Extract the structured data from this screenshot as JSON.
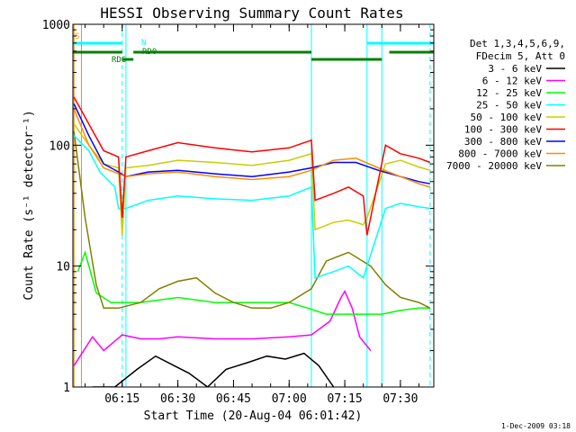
{
  "chart_data": {
    "type": "line",
    "title": "HESSI Observing Summary Count Rates",
    "xlabel": "Start Time (20-Aug-04 06:01:42)",
    "ylabel": "Count Rate (s⁻¹ detector⁻¹)",
    "y_scale": "log",
    "ylim": [
      1,
      1000
    ],
    "xlim": [
      "06:01:42",
      "07:39:00"
    ],
    "x_ticks": [
      "06:15",
      "06:30",
      "06:45",
      "07:00",
      "07:15",
      "07:30"
    ],
    "y_ticks": [
      "1",
      "10",
      "100",
      "1000"
    ],
    "legend_position": "right",
    "legend_header": [
      "Det 1,3,4,5,6,9,",
      "FDecim 5, Att 0"
    ],
    "series": [
      {
        "name": "3 - 6 keV",
        "color": "#000000",
        "x": [
          "06:07",
          "06:13",
          "06:19",
          "06:24",
          "06:29",
          "06:33",
          "06:38",
          "06:43",
          "06:49",
          "06:54",
          "06:59",
          "07:04",
          "07:08",
          "07:12"
        ],
        "y": [
          1,
          1,
          1.4,
          1.8,
          1.5,
          1.3,
          1,
          1.4,
          1.6,
          1.8,
          1.7,
          1.9,
          1.5,
          1
        ]
      },
      {
        "name": "6 - 12 keV",
        "color": "#ff00ff",
        "x": [
          "06:02",
          "06:07",
          "06:10",
          "06:15",
          "06:20",
          "06:25",
          "06:30",
          "06:40",
          "06:50",
          "07:00",
          "07:06",
          "07:11",
          "07:14",
          "07:15",
          "07:17",
          "07:19",
          "07:22"
        ],
        "y": [
          1.5,
          2.6,
          2,
          2.7,
          2.5,
          2.5,
          2.6,
          2.5,
          2.5,
          2.6,
          2.7,
          3.5,
          5.5,
          6.2,
          4.5,
          2.6,
          2
        ]
      },
      {
        "name": "12 - 25 keV",
        "color": "#00ff00",
        "x": [
          "06:03",
          "06:05",
          "06:08",
          "06:12",
          "06:20",
          "06:30",
          "06:40",
          "06:50",
          "07:00",
          "07:05",
          "07:10",
          "07:20",
          "07:25",
          "07:30",
          "07:35",
          "07:38"
        ],
        "y": [
          9,
          13,
          6,
          5,
          5,
          5.5,
          5,
          5,
          5,
          4.5,
          4,
          4,
          4,
          4.3,
          4.5,
          4.5
        ]
      },
      {
        "name": "25 - 50 keV",
        "color": "#00ffff",
        "x": [
          "06:02",
          "06:06",
          "06:09",
          "06:13",
          "06:14",
          "06:16",
          "06:22",
          "06:30",
          "06:40",
          "06:50",
          "07:00",
          "07:06",
          "07:07",
          "07:12",
          "07:16",
          "07:20",
          "07:21",
          "07:26",
          "07:30",
          "07:35",
          "07:38"
        ],
        "y": [
          120,
          90,
          60,
          45,
          30,
          30,
          35,
          38,
          36,
          35,
          38,
          45,
          8,
          9,
          10,
          8,
          10,
          30,
          33,
          31,
          30
        ]
      },
      {
        "name": "50 - 100 keV",
        "color": "#cccc00",
        "x": [
          "06:02",
          "06:06",
          "06:10",
          "06:14",
          "06:15",
          "06:16",
          "06:22",
          "06:30",
          "06:40",
          "06:50",
          "07:00",
          "07:06",
          "07:07",
          "07:12",
          "07:16",
          "07:20",
          "07:21",
          "07:26",
          "07:30",
          "07:35",
          "07:38"
        ],
        "y": [
          150,
          100,
          70,
          65,
          18,
          65,
          68,
          75,
          72,
          68,
          75,
          85,
          20,
          23,
          24,
          22,
          25,
          70,
          75,
          66,
          62
        ]
      },
      {
        "name": "100 - 300 keV",
        "color": "#ff0000",
        "x": [
          "06:02",
          "06:06",
          "06:10",
          "06:14",
          "06:15",
          "06:16",
          "06:22",
          "06:30",
          "06:40",
          "06:50",
          "07:00",
          "07:06",
          "07:07",
          "07:12",
          "07:16",
          "07:20",
          "07:21",
          "07:26",
          "07:30",
          "07:35",
          "07:38"
        ],
        "y": [
          250,
          150,
          90,
          80,
          25,
          80,
          90,
          105,
          95,
          88,
          95,
          110,
          35,
          40,
          45,
          38,
          18,
          100,
          85,
          78,
          72
        ]
      },
      {
        "name": "300 - 800 keV",
        "color": "#0000ff",
        "x": [
          "06:02",
          "06:06",
          "06:10",
          "06:14",
          "06:16",
          "06:22",
          "06:30",
          "06:40",
          "06:50",
          "07:00",
          "07:06",
          "07:12",
          "07:18",
          "07:24",
          "07:30",
          "07:35",
          "07:38"
        ],
        "y": [
          220,
          120,
          70,
          60,
          55,
          60,
          62,
          58,
          55,
          60,
          65,
          72,
          72,
          62,
          55,
          50,
          48
        ]
      },
      {
        "name": "800 - 7000 keV",
        "color": "#ff8c00",
        "x": [
          "06:02",
          "06:06",
          "06:10",
          "06:14",
          "06:16",
          "06:22",
          "06:30",
          "06:40",
          "06:50",
          "07:00",
          "07:06",
          "07:12",
          "07:18",
          "07:24",
          "07:30",
          "07:35",
          "07:38"
        ],
        "y": [
          200,
          100,
          65,
          58,
          55,
          58,
          60,
          55,
          52,
          55,
          62,
          75,
          78,
          65,
          55,
          48,
          45
        ]
      },
      {
        "name": "7000 - 20000 keV",
        "color": "#808000",
        "x": [
          "06:02",
          "06:05",
          "06:08",
          "06:10",
          "06:14",
          "06:20",
          "06:25",
          "06:30",
          "06:35",
          "06:40",
          "06:45",
          "06:50",
          "06:55",
          "07:00",
          "07:06",
          "07:10",
          "07:16",
          "07:22",
          "07:26",
          "07:30",
          "07:35",
          "07:38"
        ],
        "y": [
          130,
          25,
          7,
          4.5,
          4.5,
          5,
          6.5,
          7.5,
          8,
          6,
          5,
          4.5,
          4.5,
          5,
          6.5,
          11,
          13,
          10,
          7,
          5.5,
          5,
          4.5
        ]
      }
    ],
    "state_bars": {
      "labels": {
        "s": "S",
        "n": "N",
        "rd0": "RD0",
        "rd6": "RD6"
      },
      "cyan_segments": [
        [
          "06:01:42",
          "06:15"
        ],
        [
          "07:21",
          "07:39"
        ]
      ],
      "green_segments": [
        [
          "06:01:42",
          "06:15"
        ],
        [
          "06:18",
          "07:06"
        ],
        [
          "07:06",
          "07:25"
        ],
        [
          "07:27",
          "07:39"
        ]
      ],
      "green_short": [
        [
          "06:15",
          "06:18"
        ]
      ]
    },
    "vertical_markers": [
      {
        "time": "06:02",
        "color": "#ff8c00",
        "style": "solid"
      },
      {
        "time": "06:04",
        "color": "#ff8c00",
        "style": "solid"
      },
      {
        "time": "06:15",
        "color": "#00ffff",
        "style": "dashed"
      },
      {
        "time": "06:16",
        "color": "#00ffff",
        "style": "solid"
      },
      {
        "time": "07:06",
        "color": "#00ffff",
        "style": "solid"
      },
      {
        "time": "07:21",
        "color": "#00ffff",
        "style": "solid"
      },
      {
        "time": "07:25",
        "color": "#00ffff",
        "style": "solid"
      },
      {
        "time": "07:38",
        "color": "#00ffff",
        "style": "dashed"
      }
    ],
    "timestamp": "1-Dec-2009 03:18"
  }
}
